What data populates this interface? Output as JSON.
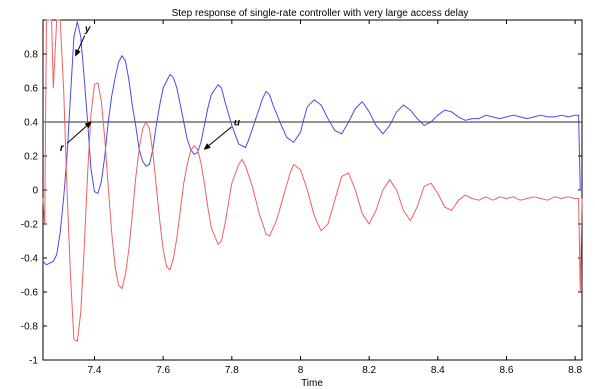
{
  "chart_data": {
    "type": "line",
    "title": "Step response of single-rate controller with very large access delay",
    "xlabel": "Time",
    "ylabel": "",
    "xlim": [
      7.25,
      8.82
    ],
    "ylim": [
      -1,
      1
    ],
    "xticks": [
      7.4,
      7.6,
      7.8,
      8,
      8.2,
      8.4,
      8.6,
      8.8
    ],
    "xtick_labels": [
      "7.4",
      "7.6",
      "7.8",
      "8",
      "8.2",
      "8.4",
      "8.6",
      "8.8"
    ],
    "yticks": [
      -1,
      -0.8,
      -0.6,
      -0.4,
      -0.2,
      0,
      0.2,
      0.4,
      0.6,
      0.8
    ],
    "ytick_labels": [
      "-1",
      "-0.8",
      "-0.6",
      "-0.4",
      "-0.2",
      "0",
      "0.2",
      "0.4",
      "0.6",
      "0.8"
    ],
    "grid": false,
    "series": [
      {
        "name": "y",
        "color": "#4a4af2",
        "points": [
          [
            7.25,
            -0.42
          ],
          [
            7.26,
            -0.44
          ],
          [
            7.27,
            -0.43
          ],
          [
            7.28,
            -0.42
          ],
          [
            7.29,
            -0.38
          ],
          [
            7.3,
            -0.25
          ],
          [
            7.31,
            -0.05
          ],
          [
            7.32,
            0.2
          ],
          [
            7.33,
            0.55
          ],
          [
            7.34,
            0.9
          ],
          [
            7.35,
            0.99
          ],
          [
            7.36,
            0.9
          ],
          [
            7.37,
            0.66
          ],
          [
            7.38,
            0.4
          ],
          [
            7.39,
            0.12
          ],
          [
            7.4,
            -0.01
          ],
          [
            7.41,
            -0.02
          ],
          [
            7.42,
            0.05
          ],
          [
            7.43,
            0.2
          ],
          [
            7.44,
            0.4
          ],
          [
            7.45,
            0.55
          ],
          [
            7.46,
            0.66
          ],
          [
            7.47,
            0.75
          ],
          [
            7.48,
            0.79
          ],
          [
            7.49,
            0.76
          ],
          [
            7.5,
            0.65
          ],
          [
            7.51,
            0.5
          ],
          [
            7.52,
            0.38
          ],
          [
            7.53,
            0.24
          ],
          [
            7.54,
            0.17
          ],
          [
            7.55,
            0.14
          ],
          [
            7.56,
            0.15
          ],
          [
            7.57,
            0.24
          ],
          [
            7.58,
            0.38
          ],
          [
            7.59,
            0.5
          ],
          [
            7.6,
            0.6
          ],
          [
            7.62,
            0.68
          ],
          [
            7.63,
            0.66
          ],
          [
            7.64,
            0.6
          ],
          [
            7.65,
            0.5
          ],
          [
            7.66,
            0.4
          ],
          [
            7.67,
            0.3
          ],
          [
            7.68,
            0.24
          ],
          [
            7.69,
            0.21
          ],
          [
            7.7,
            0.22
          ],
          [
            7.71,
            0.28
          ],
          [
            7.72,
            0.38
          ],
          [
            7.73,
            0.48
          ],
          [
            7.74,
            0.56
          ],
          [
            7.76,
            0.62
          ],
          [
            7.77,
            0.6
          ],
          [
            7.78,
            0.52
          ],
          [
            7.8,
            0.38
          ],
          [
            7.82,
            0.27
          ],
          [
            7.84,
            0.25
          ],
          [
            7.85,
            0.3
          ],
          [
            7.87,
            0.42
          ],
          [
            7.89,
            0.54
          ],
          [
            7.9,
            0.58
          ],
          [
            7.91,
            0.56
          ],
          [
            7.92,
            0.5
          ],
          [
            7.94,
            0.4
          ],
          [
            7.96,
            0.31
          ],
          [
            7.98,
            0.28
          ],
          [
            8.0,
            0.34
          ],
          [
            8.01,
            0.42
          ],
          [
            8.02,
            0.49
          ],
          [
            8.04,
            0.53
          ],
          [
            8.06,
            0.5
          ],
          [
            8.08,
            0.42
          ],
          [
            8.1,
            0.35
          ],
          [
            8.12,
            0.33
          ],
          [
            8.14,
            0.4
          ],
          [
            8.16,
            0.48
          ],
          [
            8.18,
            0.52
          ],
          [
            8.2,
            0.46
          ],
          [
            8.22,
            0.38
          ],
          [
            8.24,
            0.33
          ],
          [
            8.26,
            0.38
          ],
          [
            8.28,
            0.46
          ],
          [
            8.3,
            0.5
          ],
          [
            8.32,
            0.47
          ],
          [
            8.34,
            0.42
          ],
          [
            8.36,
            0.38
          ],
          [
            8.38,
            0.4
          ],
          [
            8.4,
            0.44
          ],
          [
            8.42,
            0.47
          ],
          [
            8.44,
            0.46
          ],
          [
            8.46,
            0.43
          ],
          [
            8.48,
            0.41
          ],
          [
            8.5,
            0.42
          ],
          [
            8.52,
            0.42
          ],
          [
            8.54,
            0.44
          ],
          [
            8.56,
            0.43
          ],
          [
            8.58,
            0.42
          ],
          [
            8.6,
            0.43
          ],
          [
            8.62,
            0.44
          ],
          [
            8.64,
            0.43
          ],
          [
            8.66,
            0.42
          ],
          [
            8.68,
            0.43
          ],
          [
            8.7,
            0.44
          ],
          [
            8.72,
            0.43
          ],
          [
            8.74,
            0.43
          ],
          [
            8.76,
            0.44
          ],
          [
            8.78,
            0.43
          ],
          [
            8.8,
            0.44
          ],
          [
            8.81,
            0.44
          ],
          [
            8.815,
            0.0
          ],
          [
            8.82,
            0.0
          ]
        ]
      },
      {
        "name": "r",
        "color": "#555555",
        "points": [
          [
            7.25,
            0.4
          ],
          [
            8.82,
            0.4
          ]
        ]
      },
      {
        "name": "u",
        "color": "#f06060",
        "points": [
          [
            7.25,
            -0.05
          ],
          [
            7.255,
            -0.2
          ],
          [
            7.26,
            1.0
          ],
          [
            7.275,
            1.0
          ],
          [
            7.28,
            0.6
          ],
          [
            7.29,
            1.0
          ],
          [
            7.3,
            1.0
          ],
          [
            7.31,
            0.6
          ],
          [
            7.32,
            0.0
          ],
          [
            7.33,
            -0.5
          ],
          [
            7.34,
            -0.88
          ],
          [
            7.35,
            -0.89
          ],
          [
            7.36,
            -0.72
          ],
          [
            7.37,
            -0.35
          ],
          [
            7.38,
            0.1
          ],
          [
            7.39,
            0.45
          ],
          [
            7.4,
            0.62
          ],
          [
            7.41,
            0.63
          ],
          [
            7.42,
            0.52
          ],
          [
            7.43,
            0.3
          ],
          [
            7.44,
            0.02
          ],
          [
            7.45,
            -0.25
          ],
          [
            7.46,
            -0.45
          ],
          [
            7.47,
            -0.56
          ],
          [
            7.48,
            -0.58
          ],
          [
            7.49,
            -0.5
          ],
          [
            7.5,
            -0.35
          ],
          [
            7.51,
            -0.15
          ],
          [
            7.52,
            0.07
          ],
          [
            7.53,
            0.24
          ],
          [
            7.54,
            0.36
          ],
          [
            7.55,
            0.4
          ],
          [
            7.56,
            0.36
          ],
          [
            7.57,
            0.22
          ],
          [
            7.58,
            0.02
          ],
          [
            7.59,
            -0.18
          ],
          [
            7.6,
            -0.35
          ],
          [
            7.61,
            -0.45
          ],
          [
            7.62,
            -0.47
          ],
          [
            7.63,
            -0.4
          ],
          [
            7.64,
            -0.28
          ],
          [
            7.65,
            -0.12
          ],
          [
            7.66,
            0.04
          ],
          [
            7.67,
            0.15
          ],
          [
            7.68,
            0.23
          ],
          [
            7.69,
            0.26
          ],
          [
            7.7,
            0.24
          ],
          [
            7.71,
            0.16
          ],
          [
            7.72,
            0.04
          ],
          [
            7.73,
            -0.1
          ],
          [
            7.74,
            -0.22
          ],
          [
            7.76,
            -0.32
          ],
          [
            7.77,
            -0.3
          ],
          [
            7.78,
            -0.2
          ],
          [
            7.79,
            -0.08
          ],
          [
            7.8,
            0.04
          ],
          [
            7.82,
            0.15
          ],
          [
            7.83,
            0.18
          ],
          [
            7.84,
            0.14
          ],
          [
            7.86,
            0.02
          ],
          [
            7.88,
            -0.14
          ],
          [
            7.9,
            -0.26
          ],
          [
            7.91,
            -0.27
          ],
          [
            7.93,
            -0.18
          ],
          [
            7.95,
            -0.04
          ],
          [
            7.97,
            0.1
          ],
          [
            7.98,
            0.15
          ],
          [
            8.0,
            0.12
          ],
          [
            8.02,
            0.0
          ],
          [
            8.04,
            -0.15
          ],
          [
            8.06,
            -0.24
          ],
          [
            8.08,
            -0.2
          ],
          [
            8.1,
            -0.06
          ],
          [
            8.12,
            0.08
          ],
          [
            8.14,
            0.1
          ],
          [
            8.16,
            0.0
          ],
          [
            8.18,
            -0.14
          ],
          [
            8.2,
            -0.2
          ],
          [
            8.22,
            -0.12
          ],
          [
            8.24,
            0.0
          ],
          [
            8.26,
            0.06
          ],
          [
            8.28,
            0.0
          ],
          [
            8.3,
            -0.12
          ],
          [
            8.32,
            -0.18
          ],
          [
            8.34,
            -0.1
          ],
          [
            8.36,
            0.02
          ],
          [
            8.38,
            0.04
          ],
          [
            8.4,
            -0.02
          ],
          [
            8.42,
            -0.1
          ],
          [
            8.44,
            -0.12
          ],
          [
            8.46,
            -0.06
          ],
          [
            8.48,
            -0.03
          ],
          [
            8.5,
            -0.05
          ],
          [
            8.52,
            -0.06
          ],
          [
            8.54,
            -0.04
          ],
          [
            8.56,
            -0.06
          ],
          [
            8.58,
            -0.04
          ],
          [
            8.6,
            -0.05
          ],
          [
            8.62,
            -0.04
          ],
          [
            8.64,
            -0.06
          ],
          [
            8.66,
            -0.05
          ],
          [
            8.68,
            -0.04
          ],
          [
            8.7,
            -0.05
          ],
          [
            8.72,
            -0.06
          ],
          [
            8.74,
            -0.04
          ],
          [
            8.76,
            -0.05
          ],
          [
            8.78,
            -0.04
          ],
          [
            8.8,
            -0.05
          ],
          [
            8.81,
            -0.05
          ],
          [
            8.815,
            -0.6
          ],
          [
            8.82,
            -0.05
          ]
        ]
      }
    ],
    "annotations": [
      {
        "label": "y",
        "text_at": [
          7.38,
          0.93
        ],
        "arrow_to": [
          7.345,
          0.79
        ]
      },
      {
        "label": "r",
        "text_at": [
          7.305,
          0.23
        ],
        "arrow_to": [
          7.39,
          0.4
        ]
      },
      {
        "label": "u",
        "text_at": [
          7.815,
          0.38
        ],
        "arrow_to": [
          7.72,
          0.24
        ]
      }
    ]
  }
}
